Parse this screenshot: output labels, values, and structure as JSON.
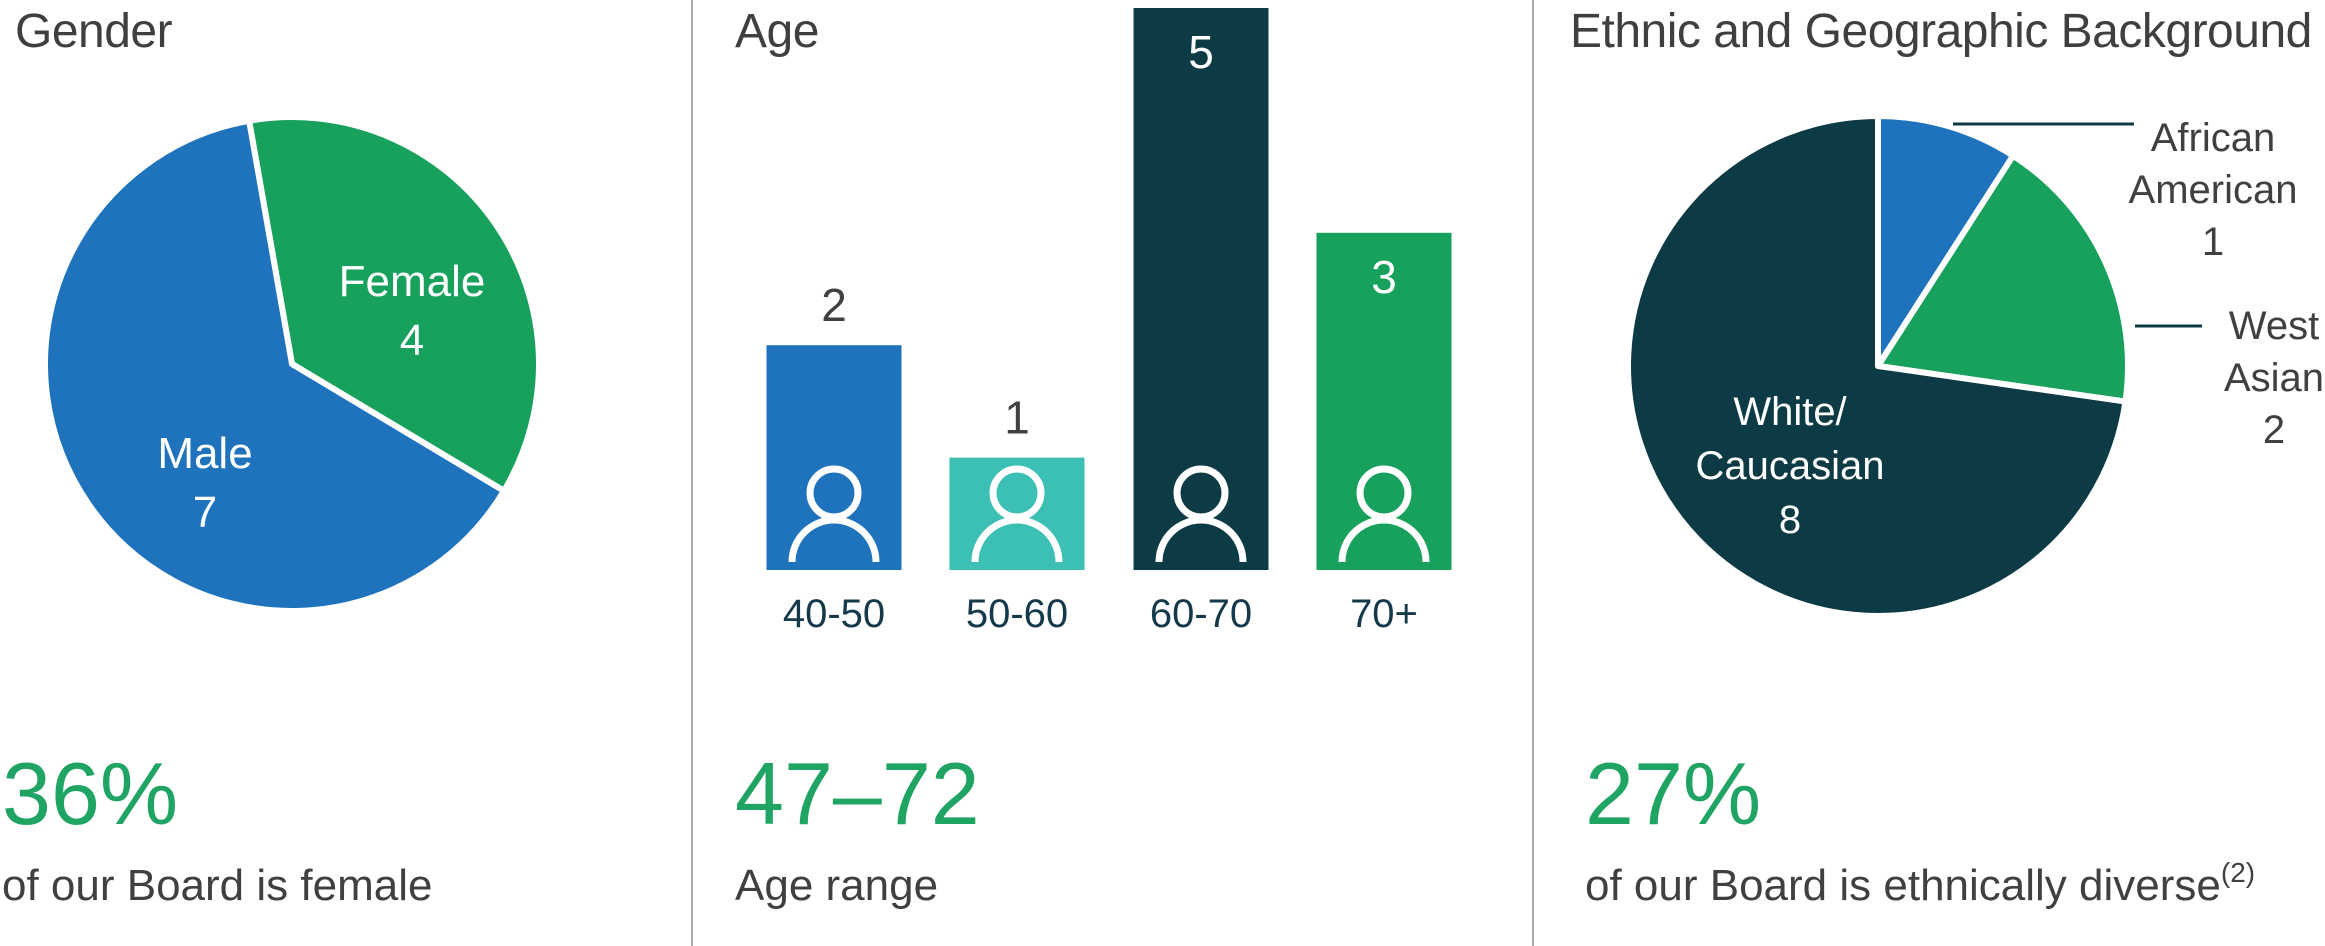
{
  "colors": {
    "accent_green": "#1FA463",
    "blue": "#1F73BD",
    "teal": "#3CBFB4",
    "dark_teal": "#0D3B45",
    "green": "#17A15D",
    "title_gray": "#3F3F3F",
    "caption_gray": "#404040",
    "axis_label_teal": "#14394B",
    "leader_line": "#0E3A43",
    "divider_gray": "#A9A9A9"
  },
  "panels": {
    "gender": {
      "title": "Gender",
      "stat_value": "36%",
      "stat_caption": "of our Board is female"
    },
    "age": {
      "title": "Age",
      "stat_value": "47–72",
      "stat_caption": "Age range"
    },
    "ethnic": {
      "title": "Ethnic and Geographic Background",
      "stat_value": "27%",
      "stat_caption": "of our Board is ethnically diverse",
      "stat_caption_sup": "(2)",
      "callouts": [
        {
          "line1": "African",
          "line2": "American",
          "line3": "1"
        },
        {
          "line1": "West",
          "line2": "Asian",
          "line3": "2"
        }
      ]
    }
  },
  "chart_data": [
    {
      "type": "pie",
      "title": "Gender",
      "labels": [
        "Female",
        "Male"
      ],
      "values": [
        4,
        7
      ],
      "colors": [
        "#17A15D",
        "#1F73BD"
      ],
      "start_angle_deg": -10,
      "slice_label_lines": [
        [
          "Female",
          "4"
        ],
        [
          "Male",
          "7"
        ]
      ],
      "legend_position": "inside-slices"
    },
    {
      "type": "bar",
      "title": "Age",
      "categories": [
        "40-50",
        "50-60",
        "60-70",
        "70+"
      ],
      "values": [
        2,
        1,
        5,
        3
      ],
      "colors": [
        "#1F73BD",
        "#3CBFB4",
        "#0D3B45",
        "#17A15D"
      ],
      "value_label_position": [
        "above",
        "above",
        "inside",
        "inside"
      ],
      "bar_icon": "person",
      "xlabel": "",
      "ylabel": "",
      "ylim": [
        0,
        5
      ],
      "grid": false
    },
    {
      "type": "pie",
      "title": "Ethnic and Geographic Background",
      "labels": [
        "African American",
        "West Asian",
        "White/Caucasian"
      ],
      "values": [
        1,
        2,
        8
      ],
      "colors": [
        "#1F73BD",
        "#17A15D",
        "#0D3B45"
      ],
      "start_angle_deg": 0,
      "slice_label_lines": [
        null,
        null,
        [
          "White/",
          "Caucasian",
          "8"
        ]
      ],
      "legend_position": "outside-callouts"
    }
  ]
}
